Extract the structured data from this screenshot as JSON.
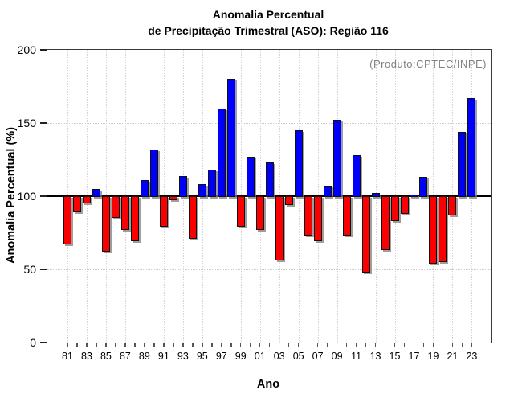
{
  "chart_data": {
    "type": "bar",
    "title_line1": "Anomalia Percentual",
    "title_line2": "de Precipitação Trimestral (ASO): Região 116",
    "ylabel": "Anomalia Percentual (%)",
    "xlabel": "Ano",
    "annotation": "(Produto:CPTEC/INPE)",
    "baseline": 100,
    "ylim": [
      0,
      200
    ],
    "yticks": [
      0,
      50,
      100,
      150,
      200
    ],
    "ytick_labels": [
      "0",
      "50",
      "100",
      "150",
      "200"
    ],
    "grid_y_values": [
      50,
      150
    ],
    "xtick_labels": [
      "81",
      "83",
      "85",
      "87",
      "89",
      "91",
      "93",
      "95",
      "97",
      "99",
      "01",
      "03",
      "05",
      "07",
      "09",
      "11",
      "13",
      "15",
      "17",
      "19",
      "21",
      "23"
    ],
    "years": [
      1981,
      1982,
      1983,
      1984,
      1985,
      1986,
      1987,
      1988,
      1989,
      1990,
      1991,
      1992,
      1993,
      1994,
      1995,
      1996,
      1997,
      1998,
      1999,
      2000,
      2001,
      2002,
      2003,
      2004,
      2005,
      2006,
      2007,
      2008,
      2009,
      2010,
      2011,
      2012,
      2013,
      2014,
      2015,
      2016,
      2017,
      2018,
      2019,
      2020,
      2021,
      2022,
      2023
    ],
    "values": [
      67,
      89,
      95,
      105,
      62,
      85,
      77,
      69,
      111,
      132,
      79,
      97,
      114,
      71,
      108,
      118,
      160,
      180,
      79,
      127,
      77,
      123,
      56,
      94,
      145,
      73,
      69,
      107,
      152,
      73,
      128,
      48,
      102,
      63,
      83,
      88,
      101,
      113,
      54,
      55,
      87,
      144,
      167
    ],
    "colors": {
      "above_baseline": "#0000fa",
      "below_baseline": "#fa0000",
      "annotation_gray": "#808080",
      "grid": "#cccccc",
      "axis": "#3a3a3a"
    },
    "legend": null,
    "grid": "dotted"
  }
}
